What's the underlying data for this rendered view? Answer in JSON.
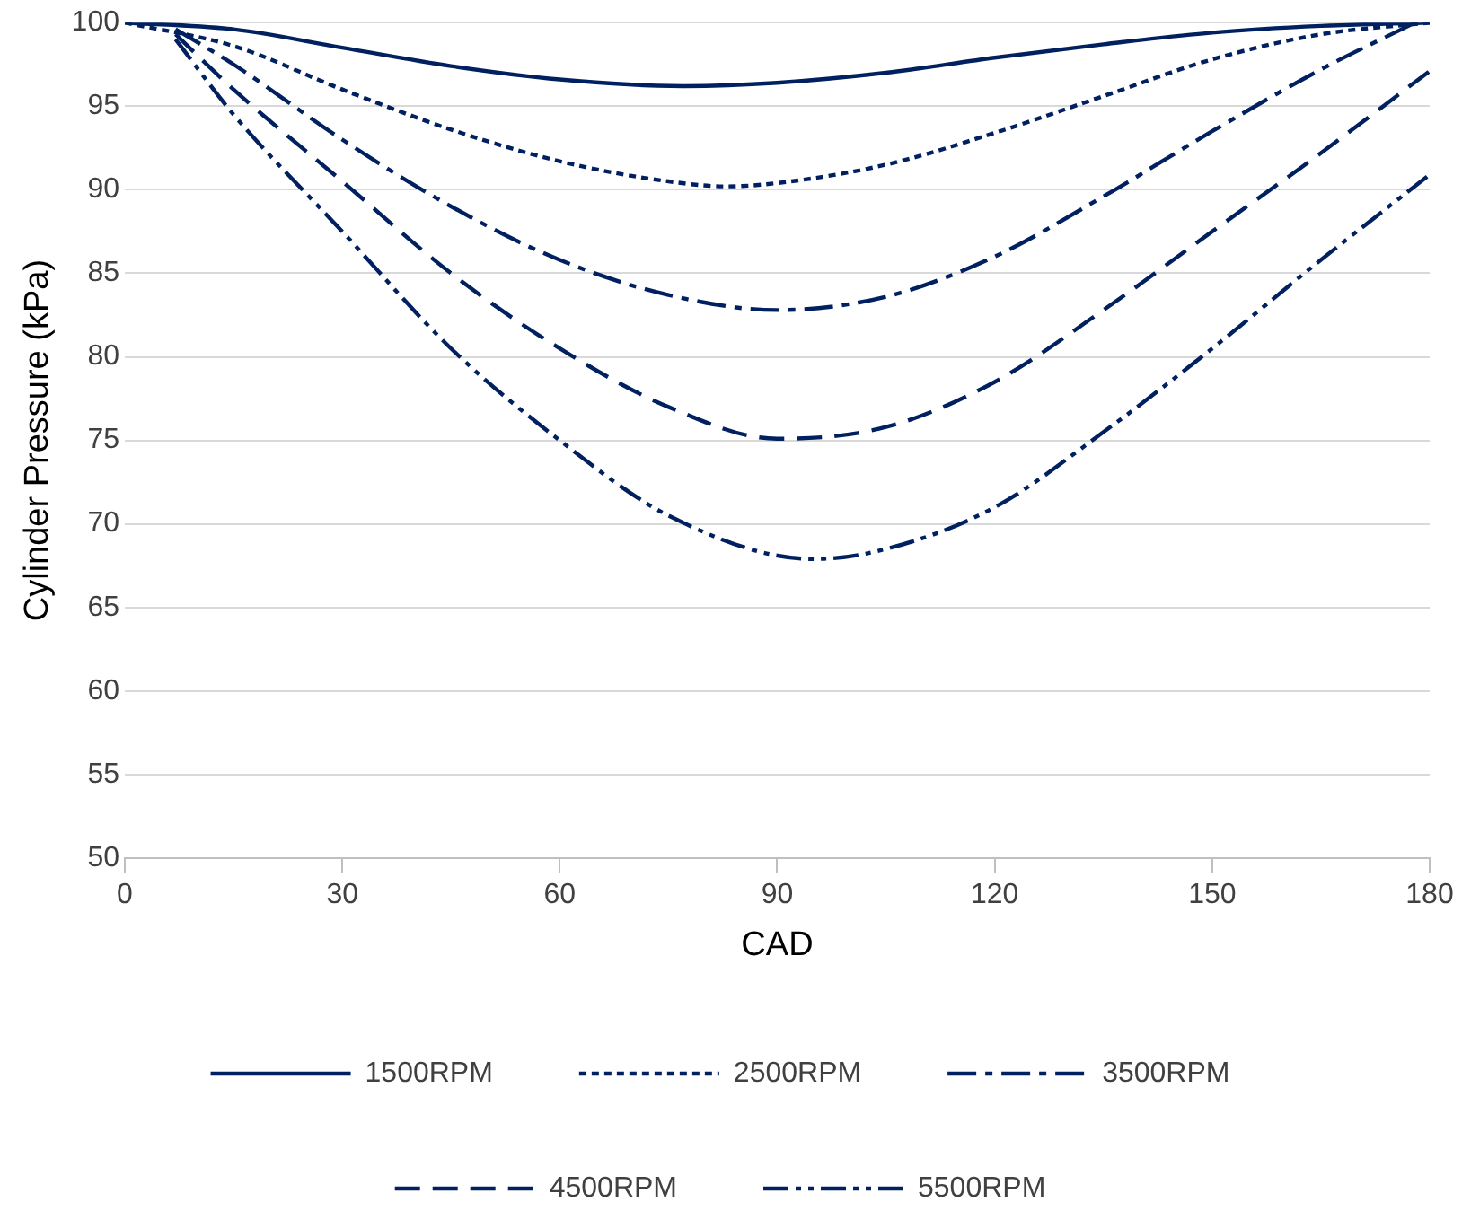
{
  "chart_data": {
    "type": "line",
    "xlabel": "CAD",
    "ylabel": "Cylinder Pressure (kPa)",
    "xlim": [
      0,
      180
    ],
    "xticks": [
      0,
      30,
      60,
      90,
      120,
      150,
      180
    ],
    "ylim": [
      50,
      100
    ],
    "yticks": [
      50,
      55,
      60,
      65,
      70,
      75,
      80,
      85,
      90,
      95,
      100
    ],
    "grid": "y",
    "legend": "bottom",
    "marker": "none",
    "series": [
      {
        "name": "1500RPM",
        "color": "#002060",
        "line_style": "solid",
        "x": [
          0,
          15,
          30,
          45,
          60,
          77,
          90,
          105,
          120,
          135,
          150,
          165,
          180
        ],
        "values": [
          100,
          99.6,
          98.5,
          97.4,
          96.6,
          96.2,
          96.4,
          97.0,
          97.9,
          98.7,
          99.4,
          99.8,
          100
        ]
      },
      {
        "name": "2500RPM",
        "color": "#002060",
        "line_style": "dotted",
        "x": [
          0,
          15,
          30,
          45,
          60,
          75,
          83,
          90,
          105,
          120,
          135,
          150,
          165,
          180
        ],
        "values": [
          100,
          98.6,
          96.0,
          93.6,
          91.7,
          90.5,
          90.2,
          90.4,
          91.5,
          93.4,
          95.6,
          97.8,
          99.3,
          100
        ]
      },
      {
        "name": "3500RPM",
        "color": "#002060",
        "line_style": "dashdot",
        "x": [
          7,
          15,
          30,
          45,
          60,
          75,
          90,
          105,
          120,
          135,
          150,
          165,
          178
        ],
        "values": [
          99.6,
          97.5,
          93.0,
          89.0,
          85.8,
          83.7,
          82.8,
          83.6,
          86.0,
          89.6,
          93.5,
          97.2,
          100
        ]
      },
      {
        "name": "4500RPM",
        "color": "#002060",
        "line_style": "dashed",
        "x": [
          7,
          15,
          30,
          45,
          60,
          75,
          90,
          105,
          120,
          135,
          150,
          165,
          180
        ],
        "values": [
          99.3,
          96.0,
          90.5,
          85.0,
          80.5,
          77.0,
          75.1,
          75.8,
          78.5,
          82.8,
          87.5,
          92.2,
          97.1
        ]
      },
      {
        "name": "5500RPM",
        "color": "#002060",
        "line_style": "dashdotdot",
        "x": [
          7,
          15,
          30,
          45,
          60,
          75,
          95,
          105,
          120,
          135,
          150,
          165,
          180
        ],
        "values": [
          99.0,
          94.5,
          87.5,
          80.5,
          75.0,
          70.5,
          67.9,
          68.5,
          71.0,
          75.5,
          80.5,
          85.8,
          90.9
        ]
      }
    ]
  }
}
